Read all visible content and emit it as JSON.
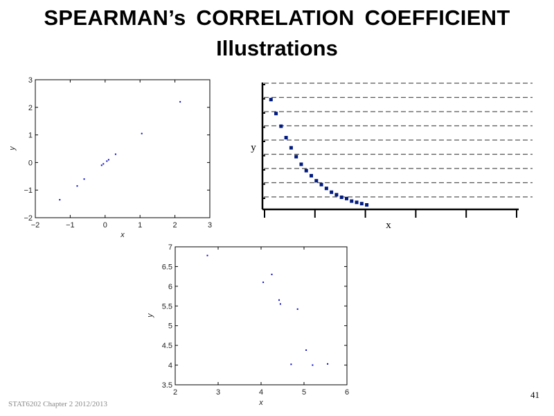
{
  "slide": {
    "title": "SPEARMAN’s CORRELATION COEFFICIENT",
    "subtitle": "Illustrations",
    "footer": "STAT6202 Chapter 2 2012/2013",
    "page_number": "41"
  },
  "colors": {
    "point": "#0000cc",
    "dark_point": "#001a80",
    "axis": "#000000",
    "grid": "#555555"
  },
  "chart_data": [
    {
      "type": "scatter",
      "xlabel": "x",
      "ylabel": "y",
      "xlim": [
        -2,
        3
      ],
      "ylim": [
        -2,
        3
      ],
      "xticks": [
        "−2",
        "−1",
        "0",
        "1",
        "2",
        "3"
      ],
      "yticks": [
        "−2",
        "−1",
        "0",
        "1",
        "2",
        "3"
      ],
      "points": [
        [
          -1.3,
          -1.35
        ],
        [
          -0.8,
          -0.85
        ],
        [
          -0.6,
          -0.6
        ],
        [
          -0.1,
          -0.1
        ],
        [
          -0.05,
          -0.05
        ],
        [
          0.05,
          0.05
        ],
        [
          0.1,
          0.1
        ],
        [
          0.3,
          0.3
        ],
        [
          1.05,
          1.05
        ],
        [
          2.15,
          2.2
        ]
      ]
    },
    {
      "type": "scatter",
      "xlabel": "x",
      "ylabel": "y",
      "xlim": [
        0,
        10
      ],
      "ylim": [
        0,
        10
      ],
      "grid": "horizontal-dashed",
      "points": [
        [
          0.2,
          8.6
        ],
        [
          0.4,
          7.5
        ],
        [
          0.6,
          6.5
        ],
        [
          0.8,
          5.6
        ],
        [
          1.0,
          4.8
        ],
        [
          1.2,
          4.1
        ],
        [
          1.4,
          3.5
        ],
        [
          1.6,
          3.0
        ],
        [
          1.8,
          2.6
        ],
        [
          2.0,
          2.2
        ],
        [
          2.2,
          1.9
        ],
        [
          2.4,
          1.6
        ],
        [
          2.6,
          1.3
        ],
        [
          2.8,
          1.1
        ],
        [
          3.0,
          0.9
        ],
        [
          3.2,
          0.8
        ],
        [
          3.4,
          0.6
        ],
        [
          3.6,
          0.5
        ],
        [
          3.8,
          0.4
        ],
        [
          4.0,
          0.3
        ]
      ]
    },
    {
      "type": "scatter",
      "xlabel": "x",
      "ylabel": "y",
      "xlim": [
        2,
        6
      ],
      "ylim": [
        3.5,
        7
      ],
      "xticks": [
        "2",
        "3",
        "4",
        "5",
        "6"
      ],
      "yticks": [
        "3.5",
        "4",
        "4.5",
        "5",
        "5.5",
        "6",
        "6.5",
        "7"
      ],
      "points": [
        [
          2.75,
          6.78
        ],
        [
          4.05,
          6.1
        ],
        [
          4.25,
          6.3
        ],
        [
          4.42,
          5.65
        ],
        [
          4.45,
          5.55
        ],
        [
          4.85,
          5.42
        ],
        [
          5.05,
          4.38
        ],
        [
          4.7,
          4.02
        ],
        [
          5.2,
          4.0
        ],
        [
          5.55,
          4.03
        ]
      ]
    }
  ]
}
